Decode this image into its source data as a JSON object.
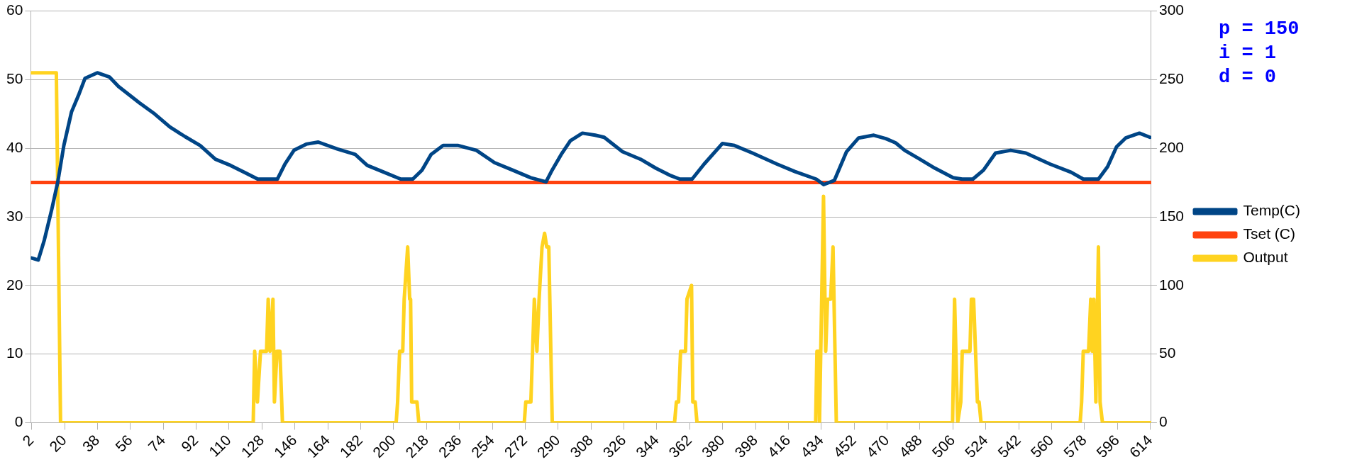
{
  "chart_data": {
    "type": "line",
    "xlim": [
      1.5,
      614.5
    ],
    "xticks": [
      2,
      20,
      38,
      56,
      74,
      92,
      110,
      128,
      146,
      164,
      182,
      200,
      218,
      236,
      254,
      272,
      290,
      308,
      326,
      344,
      362,
      380,
      398,
      416,
      434,
      452,
      470,
      488,
      506,
      524,
      542,
      560,
      578,
      596,
      614
    ],
    "ylim": [
      0,
      60
    ],
    "yticks": [
      0,
      10,
      20,
      30,
      40,
      50,
      60
    ],
    "y2lim": [
      0,
      300
    ],
    "y2ticks": [
      0,
      50,
      100,
      150,
      200,
      250,
      300
    ],
    "grid": "y",
    "legend": "right",
    "marker": "none",
    "line_style": "solid",
    "annotations": [
      "p = 150",
      "i = 1",
      "d = 0"
    ],
    "series": [
      {
        "name": "Temp(C)",
        "color": "#004586",
        "x": [
          2,
          5.6,
          8.9,
          13.0,
          16.3,
          19.6,
          23.8,
          27.9,
          31.2,
          37.9,
          44.5,
          49.5,
          61.0,
          69.3,
          77.6,
          85.9,
          94.2,
          102.5,
          110.8,
          119.0,
          125.7,
          136.4,
          140.6,
          145.5,
          152.2,
          158.8,
          169.1,
          179.0,
          185.6,
          193.9,
          203.9,
          210.5,
          215.5,
          220.5,
          227.1,
          235.4,
          245.3,
          255.2,
          265.2,
          275.1,
          283.4,
          286.7,
          291.7,
          296.7,
          303.3,
          310.3,
          315.2,
          325.2,
          335.1,
          343.4,
          351.7,
          356.6,
          363.3,
          369.9,
          379.9,
          386.5,
          396.4,
          409.7,
          419.6,
          431.2,
          435.3,
          441.1,
          447.8,
          454.4,
          462.7,
          469.3,
          474.6,
          479.6,
          487.9,
          496.1,
          506.1,
          511.0,
          516.9,
          522.7,
          529.3,
          537.6,
          545.9,
          559.1,
          570.7,
          577.3,
          585.6,
          590.6,
          595.5,
          600.5,
          608.0,
          613.8
        ],
        "values": [
          24.0,
          23.7,
          26.6,
          31.1,
          35.1,
          40.4,
          45.3,
          47.9,
          50.2,
          51.0,
          50.4,
          49.0,
          46.6,
          45.0,
          43.1,
          41.7,
          40.4,
          38.4,
          37.5,
          36.4,
          35.5,
          35.5,
          37.7,
          39.7,
          40.6,
          40.9,
          39.9,
          39.1,
          37.5,
          36.6,
          35.5,
          35.5,
          36.8,
          39.1,
          40.4,
          40.4,
          39.7,
          37.9,
          36.8,
          35.7,
          35.1,
          36.8,
          39.1,
          41.1,
          42.2,
          41.9,
          41.6,
          39.5,
          38.4,
          37.1,
          36.0,
          35.5,
          35.5,
          37.7,
          40.7,
          40.4,
          39.3,
          37.7,
          36.6,
          35.5,
          34.7,
          35.3,
          39.5,
          41.5,
          41.9,
          41.4,
          40.8,
          39.7,
          38.4,
          37.1,
          35.7,
          35.5,
          35.5,
          36.8,
          39.3,
          39.7,
          39.3,
          37.7,
          36.5,
          35.5,
          35.5,
          37.3,
          40.2,
          41.5,
          42.2,
          41.6
        ]
      },
      {
        "name": "Tset (C)",
        "color": "#ff420e",
        "x": [
          2,
          614
        ],
        "values": [
          35,
          35
        ]
      },
      {
        "name": "Output",
        "color": "#ffd320",
        "axis": "y2",
        "x": [
          2,
          15.5,
          17.8,
          123.2,
          124,
          125.5,
          127.2,
          130.5,
          131.4,
          132.4,
          134,
          134.8,
          136.2,
          137.8,
          139.2,
          201.4,
          202.2,
          203.3,
          205.0,
          205.8,
          207.7,
          208.8,
          209.3,
          209.9,
          212.8,
          213.8,
          215.1,
          271.5,
          272.3,
          275.1,
          277.0,
          278.4,
          279.6,
          281.2,
          282.6,
          283.8,
          284.9,
          286.8,
          353.7,
          354.7,
          355.9,
          357.0,
          359.7,
          360.5,
          363.0,
          363.7,
          365.0,
          366.0,
          430.9,
          431.6,
          432.6,
          433.0,
          435.2,
          436.4,
          437.4,
          439.1,
          440.4,
          442.2,
          505.8,
          506.9,
          508.6,
          510.3,
          511.1,
          515.3,
          516.1,
          517.3,
          519.4,
          520.3,
          521.4,
          575.6,
          576.4,
          577.3,
          580.2,
          581.4,
          582.2,
          583.1,
          584.2,
          585.6,
          586.5,
          587.8,
          614
        ],
        "values": [
          255,
          255,
          0,
          0,
          52,
          15,
          52,
          52,
          90,
          52,
          90,
          15,
          52,
          52,
          0,
          0,
          15,
          52,
          52,
          90,
          128,
          90,
          90,
          15,
          15,
          0,
          0,
          0,
          15,
          15,
          90,
          52,
          90,
          128,
          138,
          128,
          128,
          0,
          0,
          15,
          15,
          52,
          52,
          90,
          100,
          15,
          15,
          0,
          0,
          52,
          52,
          0,
          165,
          52,
          90,
          90,
          128,
          0,
          0,
          90,
          0,
          15,
          52,
          52,
          90,
          90,
          15,
          15,
          0,
          0,
          15,
          52,
          52,
          90,
          52,
          90,
          15,
          128,
          15,
          0,
          0
        ]
      }
    ]
  }
}
